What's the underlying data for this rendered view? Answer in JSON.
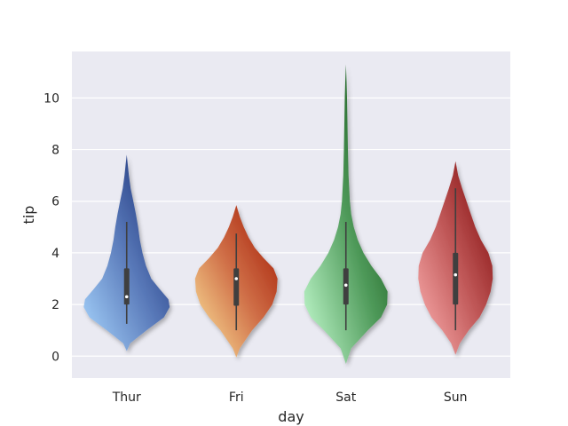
{
  "chart_data": {
    "type": "violin",
    "xlabel": "day",
    "ylabel": "tip",
    "ylim": [
      -0.85,
      11.8
    ],
    "yticks": [
      0,
      2,
      4,
      6,
      8,
      10
    ],
    "grid": true,
    "categories": [
      "Thur",
      "Fri",
      "Sat",
      "Sun"
    ],
    "violins": [
      {
        "category": "Thur",
        "colors": {
          "light": "#a9d7ff",
          "mid": "#5878b8",
          "dark": "#0a1e66"
        },
        "min": 1.25,
        "q1": 2.0,
        "median": 2.3,
        "q3": 3.4,
        "max": 5.2,
        "profile": [
          [
            0.2,
            0.0
          ],
          [
            0.5,
            0.08
          ],
          [
            1.0,
            0.45
          ],
          [
            1.5,
            0.85
          ],
          [
            1.9,
            0.98
          ],
          [
            2.2,
            0.95
          ],
          [
            2.6,
            0.75
          ],
          [
            3.0,
            0.56
          ],
          [
            3.5,
            0.44
          ],
          [
            4.0,
            0.36
          ],
          [
            4.5,
            0.3
          ],
          [
            5.0,
            0.26
          ],
          [
            5.5,
            0.21
          ],
          [
            6.0,
            0.15
          ],
          [
            6.5,
            0.09
          ],
          [
            7.0,
            0.05
          ],
          [
            7.5,
            0.02
          ],
          [
            7.8,
            0.0
          ]
        ]
      },
      {
        "category": "Fri",
        "colors": {
          "light": "#ffeba0",
          "mid": "#d07048",
          "dark": "#a01400"
        },
        "min": 1.0,
        "q1": 1.95,
        "median": 3.0,
        "q3": 3.4,
        "max": 4.75,
        "profile": [
          [
            -0.05,
            0.0
          ],
          [
            0.3,
            0.08
          ],
          [
            1.0,
            0.36
          ],
          [
            1.5,
            0.62
          ],
          [
            2.0,
            0.82
          ],
          [
            2.5,
            0.92
          ],
          [
            3.0,
            0.94
          ],
          [
            3.4,
            0.85
          ],
          [
            3.8,
            0.62
          ],
          [
            4.2,
            0.42
          ],
          [
            4.6,
            0.28
          ],
          [
            5.0,
            0.17
          ],
          [
            5.4,
            0.08
          ],
          [
            5.85,
            0.0
          ]
        ]
      },
      {
        "category": "Sat",
        "colors": {
          "light": "#c8ffd4",
          "mid": "#4f9a5a",
          "dark": "#003c00"
        },
        "min": 1.0,
        "q1": 2.0,
        "median": 2.75,
        "q3": 3.4,
        "max": 5.2,
        "profile": [
          [
            -0.3,
            0.0
          ],
          [
            0.3,
            0.12
          ],
          [
            1.0,
            0.5
          ],
          [
            1.5,
            0.8
          ],
          [
            2.0,
            0.94
          ],
          [
            2.5,
            0.95
          ],
          [
            3.0,
            0.8
          ],
          [
            3.5,
            0.58
          ],
          [
            4.0,
            0.4
          ],
          [
            4.5,
            0.27
          ],
          [
            5.0,
            0.18
          ],
          [
            5.5,
            0.12
          ],
          [
            6.0,
            0.09
          ],
          [
            7.0,
            0.06
          ],
          [
            8.0,
            0.045
          ],
          [
            9.0,
            0.035
          ],
          [
            10.0,
            0.025
          ],
          [
            10.6,
            0.015
          ],
          [
            11.3,
            0.0
          ]
        ]
      },
      {
        "category": "Sun",
        "colors": {
          "light": "#ffb4b4",
          "mid": "#c05858",
          "dark": "#780000"
        },
        "min": 1.0,
        "q1": 2.0,
        "median": 3.15,
        "q3": 4.0,
        "max": 6.5,
        "profile": [
          [
            0.05,
            0.0
          ],
          [
            0.5,
            0.1
          ],
          [
            1.0,
            0.3
          ],
          [
            1.5,
            0.55
          ],
          [
            2.0,
            0.7
          ],
          [
            2.5,
            0.8
          ],
          [
            3.0,
            0.85
          ],
          [
            3.5,
            0.84
          ],
          [
            4.0,
            0.75
          ],
          [
            4.5,
            0.58
          ],
          [
            5.0,
            0.45
          ],
          [
            5.5,
            0.35
          ],
          [
            6.0,
            0.25
          ],
          [
            6.5,
            0.15
          ],
          [
            7.0,
            0.06
          ],
          [
            7.55,
            0.0
          ]
        ]
      }
    ]
  }
}
